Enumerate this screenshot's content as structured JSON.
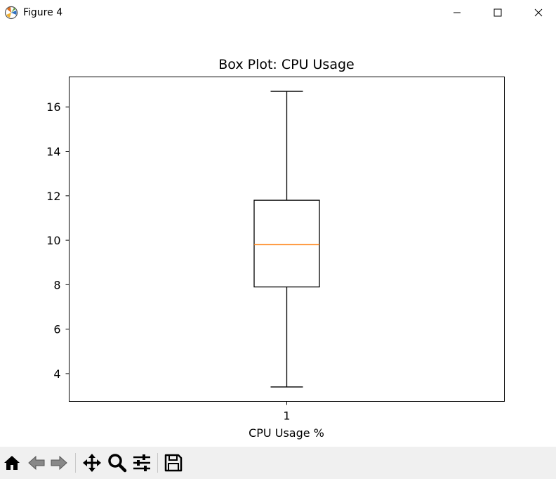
{
  "window": {
    "title": "Figure 4"
  },
  "chart_data": {
    "type": "box",
    "title": "Box Plot: CPU Usage",
    "xlabel": "CPU Usage %",
    "ylabel": "",
    "categories": [
      "1"
    ],
    "boxes": [
      {
        "category": "1",
        "whisker_low": 3.4,
        "q1": 7.9,
        "median": 9.8,
        "q3": 11.8,
        "whisker_high": 16.7
      }
    ],
    "ylim": [
      2.75,
      17.35
    ],
    "yticks": [
      4,
      6,
      8,
      10,
      12,
      14,
      16
    ],
    "grid": false,
    "colors": {
      "box": "#000000",
      "median": "#ff7f0e"
    }
  },
  "toolbar": {
    "icons": [
      "home-icon",
      "back-arrow-icon",
      "forward-arrow-icon",
      "pan-icon",
      "zoom-icon",
      "configure-subplots-icon",
      "save-icon"
    ]
  }
}
